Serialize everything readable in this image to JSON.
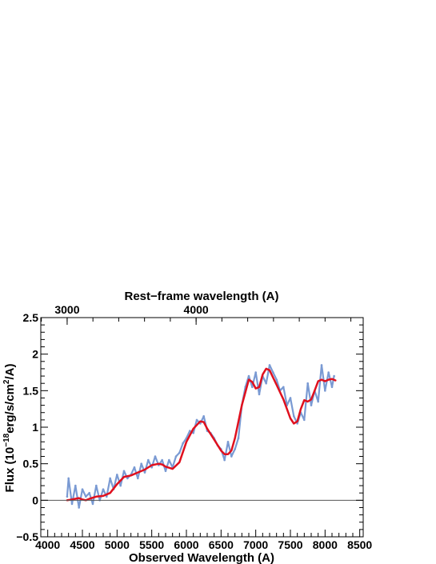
{
  "chart_data": {
    "type": "line",
    "xlabel": "Observed Wavelength (A)",
    "top_xlabel": "Rest−frame wavelength (A)",
    "ylabel_prefix": "Flux (10",
    "ylabel_exp": "−18",
    "ylabel_mid": "erg/s/cm",
    "ylabel_exp2": "2",
    "ylabel_suffix": "/A)",
    "xlim": [
      3900,
      8550
    ],
    "ylim": [
      -0.5,
      2.5
    ],
    "x_ticks": [
      4000,
      4500,
      5000,
      5500,
      6000,
      6500,
      7000,
      7500,
      8000,
      8500
    ],
    "y_ticks": [
      -0.5,
      0,
      0.5,
      1,
      1.5,
      2,
      2.5
    ],
    "x_tick_labels": [
      "4000",
      "4500",
      "5000",
      "5500",
      "6000",
      "6500",
      "7000",
      "7500",
      "8000",
      "8500"
    ],
    "y_tick_labels": [
      "−0.5",
      "0",
      "0.5",
      "1",
      "1.5",
      "2",
      "2.5"
    ],
    "top_ticks_observed": [
      4280,
      6140
    ],
    "top_tick_labels": [
      "3000",
      "4000"
    ],
    "zero_line": 0,
    "grid": false,
    "colors": {
      "spectrum": "#7a9ad3",
      "smoothed": "#e0101e",
      "axis": "#000000",
      "zero_line": "#555555"
    },
    "series": [
      {
        "kind": "noisy_spectrum",
        "x": [
          4280,
          4300,
          4350,
          4400,
          4450,
          4500,
          4550,
          4600,
          4650,
          4700,
          4750,
          4800,
          4850,
          4900,
          4950,
          5000,
          5050,
          5100,
          5150,
          5200,
          5250,
          5300,
          5350,
          5400,
          5450,
          5500,
          5550,
          5600,
          5650,
          5700,
          5750,
          5800,
          5850,
          5900,
          5950,
          6000,
          6050,
          6100,
          6150,
          6200,
          6250,
          6300,
          6350,
          6400,
          6450,
          6500,
          6550,
          6600,
          6650,
          6700,
          6750,
          6800,
          6850,
          6900,
          6950,
          7000,
          7050,
          7100,
          7150,
          7200,
          7250,
          7300,
          7350,
          7400,
          7450,
          7500,
          7550,
          7600,
          7650,
          7700,
          7750,
          7800,
          7850,
          7900,
          7950,
          8000,
          8050,
          8100,
          8130
        ],
        "values": [
          0.05,
          0.3,
          -0.05,
          0.2,
          -0.1,
          0.15,
          0.05,
          0.1,
          -0.05,
          0.2,
          0.0,
          0.15,
          0.05,
          0.3,
          0.15,
          0.35,
          0.2,
          0.4,
          0.3,
          0.35,
          0.45,
          0.3,
          0.5,
          0.38,
          0.55,
          0.45,
          0.6,
          0.48,
          0.55,
          0.4,
          0.55,
          0.45,
          0.6,
          0.65,
          0.78,
          0.85,
          0.95,
          0.92,
          1.1,
          1.05,
          1.15,
          0.95,
          0.92,
          0.85,
          0.75,
          0.7,
          0.55,
          0.8,
          0.6,
          0.7,
          0.85,
          1.3,
          1.55,
          1.7,
          1.55,
          1.75,
          1.45,
          1.7,
          1.6,
          1.85,
          1.75,
          1.65,
          1.5,
          1.55,
          1.3,
          1.4,
          1.15,
          1.05,
          1.2,
          1.1,
          1.6,
          1.3,
          1.5,
          1.35,
          1.85,
          1.5,
          1.75,
          1.55,
          1.7
        ]
      },
      {
        "kind": "smoothed_fit",
        "x": [
          4280,
          4350,
          4400,
          4450,
          4500,
          4550,
          4600,
          4700,
          4800,
          4900,
          5000,
          5100,
          5200,
          5300,
          5400,
          5500,
          5600,
          5650,
          5700,
          5800,
          5900,
          6000,
          6100,
          6200,
          6250,
          6300,
          6400,
          6500,
          6550,
          6600,
          6650,
          6700,
          6800,
          6900,
          6950,
          7000,
          7050,
          7100,
          7150,
          7200,
          7250,
          7300,
          7400,
          7500,
          7550,
          7600,
          7650,
          7700,
          7750,
          7800,
          7850,
          7900,
          7950,
          8000,
          8050,
          8100,
          8150
        ],
        "values": [
          0.0,
          0.01,
          0.02,
          0.03,
          0.01,
          0.0,
          0.02,
          0.05,
          0.06,
          0.1,
          0.22,
          0.32,
          0.34,
          0.38,
          0.42,
          0.48,
          0.5,
          0.49,
          0.46,
          0.43,
          0.52,
          0.8,
          0.98,
          1.08,
          1.07,
          0.98,
          0.83,
          0.68,
          0.63,
          0.63,
          0.68,
          0.85,
          1.3,
          1.65,
          1.62,
          1.53,
          1.55,
          1.72,
          1.8,
          1.78,
          1.68,
          1.58,
          1.38,
          1.12,
          1.05,
          1.08,
          1.25,
          1.37,
          1.35,
          1.38,
          1.5,
          1.63,
          1.65,
          1.63,
          1.65,
          1.66,
          1.64
        ]
      }
    ]
  }
}
